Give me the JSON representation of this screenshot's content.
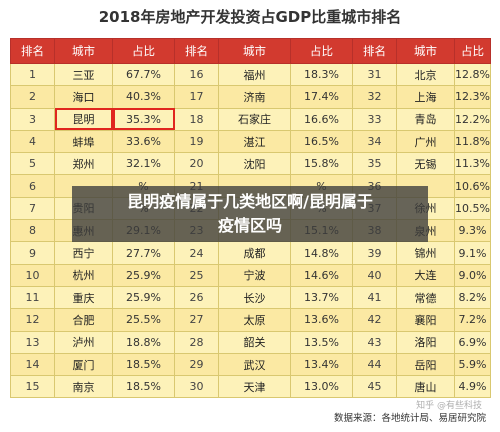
{
  "title": "2018年房地产开发投资占GDP比重城市排名",
  "headers": [
    "排名",
    "城市",
    "占比",
    "排名",
    "城市",
    "占比",
    "排名",
    "城市",
    "占比"
  ],
  "rows": [
    [
      [
        "1",
        "三亚",
        "67.7%"
      ],
      [
        "16",
        "福州",
        "18.3%"
      ],
      [
        "31",
        "北京",
        "12.8%"
      ]
    ],
    [
      [
        "2",
        "海口",
        "40.3%"
      ],
      [
        "17",
        "济南",
        "17.4%"
      ],
      [
        "32",
        "上海",
        "12.3%"
      ]
    ],
    [
      [
        "3",
        "昆明",
        "35.3%"
      ],
      [
        "18",
        "石家庄",
        "16.6%"
      ],
      [
        "33",
        "青岛",
        "12.2%"
      ]
    ],
    [
      [
        "4",
        "蚌埠",
        "33.6%"
      ],
      [
        "19",
        "湛江",
        "16.5%"
      ],
      [
        "34",
        "广州",
        "11.8%"
      ]
    ],
    [
      [
        "5",
        "郑州",
        "32.1%"
      ],
      [
        "20",
        "沈阳",
        "15.8%"
      ],
      [
        "35",
        "无锡",
        "11.3%"
      ]
    ],
    [
      [
        "6",
        "",
        "%"
      ],
      [
        "21",
        "",
        "%"
      ],
      [
        "36",
        "",
        "10.6%"
      ]
    ],
    [
      [
        "7",
        "贵阳",
        "%"
      ],
      [
        "22",
        "",
        "%"
      ],
      [
        "37",
        "徐州",
        "10.5%"
      ]
    ],
    [
      [
        "8",
        "惠州",
        "29.1%"
      ],
      [
        "23",
        "",
        "15.1%"
      ],
      [
        "38",
        "泉州",
        "9.3%"
      ]
    ],
    [
      [
        "9",
        "西宁",
        "27.7%"
      ],
      [
        "24",
        "成都",
        "14.8%"
      ],
      [
        "39",
        "锦州",
        "9.1%"
      ]
    ],
    [
      [
        "10",
        "杭州",
        "25.9%"
      ],
      [
        "25",
        "宁波",
        "14.6%"
      ],
      [
        "40",
        "大连",
        "9.0%"
      ]
    ],
    [
      [
        "11",
        "重庆",
        "25.9%"
      ],
      [
        "26",
        "长沙",
        "13.7%"
      ],
      [
        "41",
        "常德",
        "8.2%"
      ]
    ],
    [
      [
        "12",
        "合肥",
        "25.5%"
      ],
      [
        "27",
        "太原",
        "13.6%"
      ],
      [
        "42",
        "襄阳",
        "7.2%"
      ]
    ],
    [
      [
        "13",
        "泸州",
        "18.8%"
      ],
      [
        "28",
        "韶关",
        "13.5%"
      ],
      [
        "43",
        "洛阳",
        "6.9%"
      ]
    ],
    [
      [
        "14",
        "厦门",
        "18.5%"
      ],
      [
        "29",
        "武汉",
        "13.4%"
      ],
      [
        "44",
        "岳阳",
        "5.9%"
      ]
    ],
    [
      [
        "15",
        "南京",
        "18.5%"
      ],
      [
        "30",
        "天津",
        "13.0%"
      ],
      [
        "45",
        "唐山",
        "4.9%"
      ]
    ]
  ],
  "highlight": {
    "row": 2,
    "group": 0
  },
  "overlay": {
    "line1": "昆明疫情属于几类地区啊/昆明属于",
    "line2": "疫情区吗"
  },
  "footer": "数据来源：各地统计局、易居研究院",
  "watermark": "知乎 @有些科技"
}
